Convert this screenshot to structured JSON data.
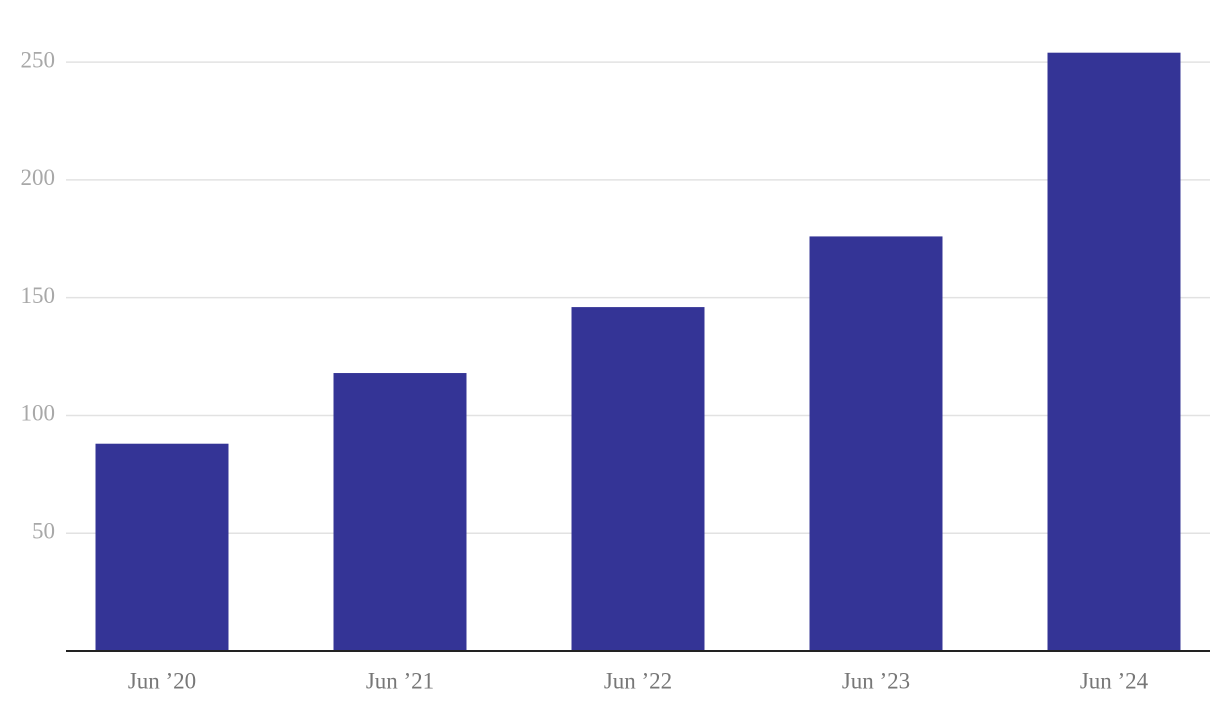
{
  "chart_data": {
    "type": "bar",
    "categories": [
      "Jun ’20",
      "Jun ’21",
      "Jun ’22",
      "Jun ’23",
      "Jun ’24"
    ],
    "values": [
      88,
      118,
      146,
      176,
      254
    ],
    "color": "#343496",
    "ylim": [
      0,
      270
    ],
    "yticks": [
      50,
      100,
      150,
      200,
      250
    ],
    "grid": true
  }
}
